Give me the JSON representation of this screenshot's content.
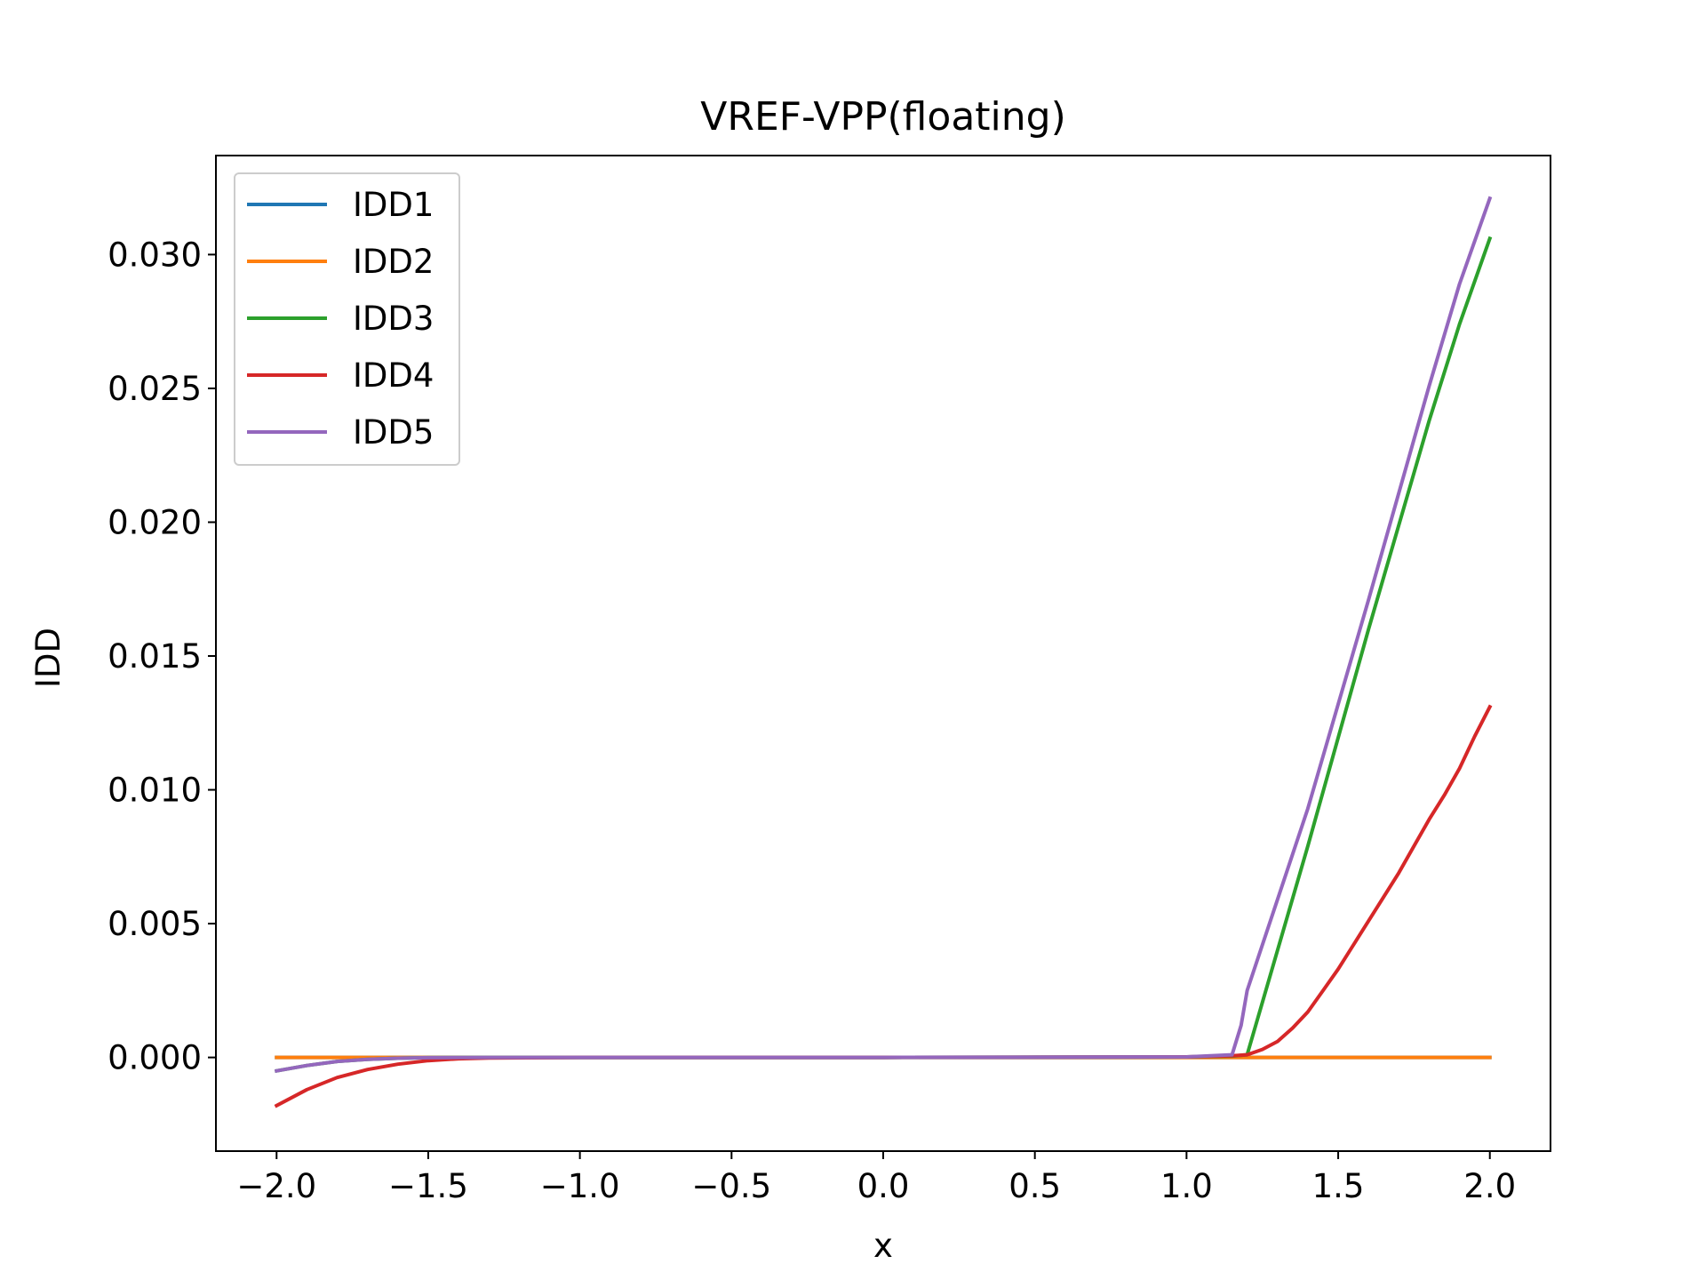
{
  "chart_data": {
    "type": "line",
    "title": "VREF-VPP(floating)",
    "xlabel": "x",
    "ylabel": "IDD",
    "xlim": [
      -2.2,
      2.2
    ],
    "ylim": [
      -0.0035,
      0.0337
    ],
    "xticks": [
      {
        "value": -2.0,
        "label": "−2.0"
      },
      {
        "value": -1.5,
        "label": "−1.5"
      },
      {
        "value": -1.0,
        "label": "−1.0"
      },
      {
        "value": -0.5,
        "label": "−0.5"
      },
      {
        "value": 0.0,
        "label": "0.0"
      },
      {
        "value": 0.5,
        "label": "0.5"
      },
      {
        "value": 1.0,
        "label": "1.0"
      },
      {
        "value": 1.5,
        "label": "1.5"
      },
      {
        "value": 2.0,
        "label": "2.0"
      }
    ],
    "yticks": [
      {
        "value": 0.0,
        "label": "0.000"
      },
      {
        "value": 0.005,
        "label": "0.005"
      },
      {
        "value": 0.01,
        "label": "0.010"
      },
      {
        "value": 0.015,
        "label": "0.015"
      },
      {
        "value": 0.02,
        "label": "0.020"
      },
      {
        "value": 0.025,
        "label": "0.025"
      },
      {
        "value": 0.03,
        "label": "0.030"
      }
    ],
    "grid": false,
    "legend_position": "upper-left",
    "series": [
      {
        "name": "IDD1",
        "color": "#1f77b4",
        "x": [
          -2.0,
          1.2,
          2.0
        ],
        "y": [
          0.0,
          0.0,
          0.0
        ]
      },
      {
        "name": "IDD2",
        "color": "#ff7f0e",
        "x": [
          -2.0,
          2.0
        ],
        "y": [
          0.0,
          0.0
        ]
      },
      {
        "name": "IDD3",
        "color": "#2ca02c",
        "x": [
          -2.0,
          -1.9,
          -1.8,
          -1.7,
          -1.6,
          -1.5,
          -1.3,
          -1.0,
          0.0,
          1.0,
          1.15,
          1.2,
          1.4,
          1.6,
          1.8,
          1.9,
          2.0
        ],
        "y": [
          -0.0005,
          -0.0003,
          -0.00015,
          -7e-05,
          -3e-05,
          -1e-05,
          0.0,
          0.0,
          0.0,
          2e-05,
          5e-05,
          0.0001,
          0.0079,
          0.016,
          0.0238,
          0.0274,
          0.0306
        ]
      },
      {
        "name": "IDD4",
        "color": "#d62728",
        "x": [
          -2.0,
          -1.9,
          -1.8,
          -1.7,
          -1.6,
          -1.5,
          -1.4,
          -1.3,
          -1.0,
          0.0,
          1.0,
          1.15,
          1.2,
          1.25,
          1.3,
          1.35,
          1.4,
          1.45,
          1.5,
          1.6,
          1.7,
          1.75,
          1.8,
          1.85,
          1.9,
          1.95,
          2.0
        ],
        "y": [
          -0.0018,
          -0.0012,
          -0.00075,
          -0.00045,
          -0.00025,
          -0.00012,
          -5e-05,
          -2e-05,
          0.0,
          0.0,
          2e-05,
          6e-05,
          0.0001,
          0.0003,
          0.0006,
          0.0011,
          0.0017,
          0.0025,
          0.0033,
          0.0051,
          0.0069,
          0.0079,
          0.0089,
          0.0098,
          0.0108,
          0.012,
          0.0131
        ]
      },
      {
        "name": "IDD5",
        "color": "#9467bd",
        "x": [
          -2.0,
          -1.9,
          -1.8,
          -1.7,
          -1.6,
          -1.5,
          -1.3,
          -1.0,
          0.0,
          1.0,
          1.15,
          1.18,
          1.2,
          1.4,
          1.6,
          1.8,
          1.9,
          2.0
        ],
        "y": [
          -0.0005,
          -0.0003,
          -0.00015,
          -7e-05,
          -3e-05,
          -1e-05,
          0.0,
          0.0,
          0.0,
          2e-05,
          0.0001,
          0.0012,
          0.0025,
          0.0093,
          0.0171,
          0.0251,
          0.0289,
          0.0321
        ]
      }
    ]
  }
}
